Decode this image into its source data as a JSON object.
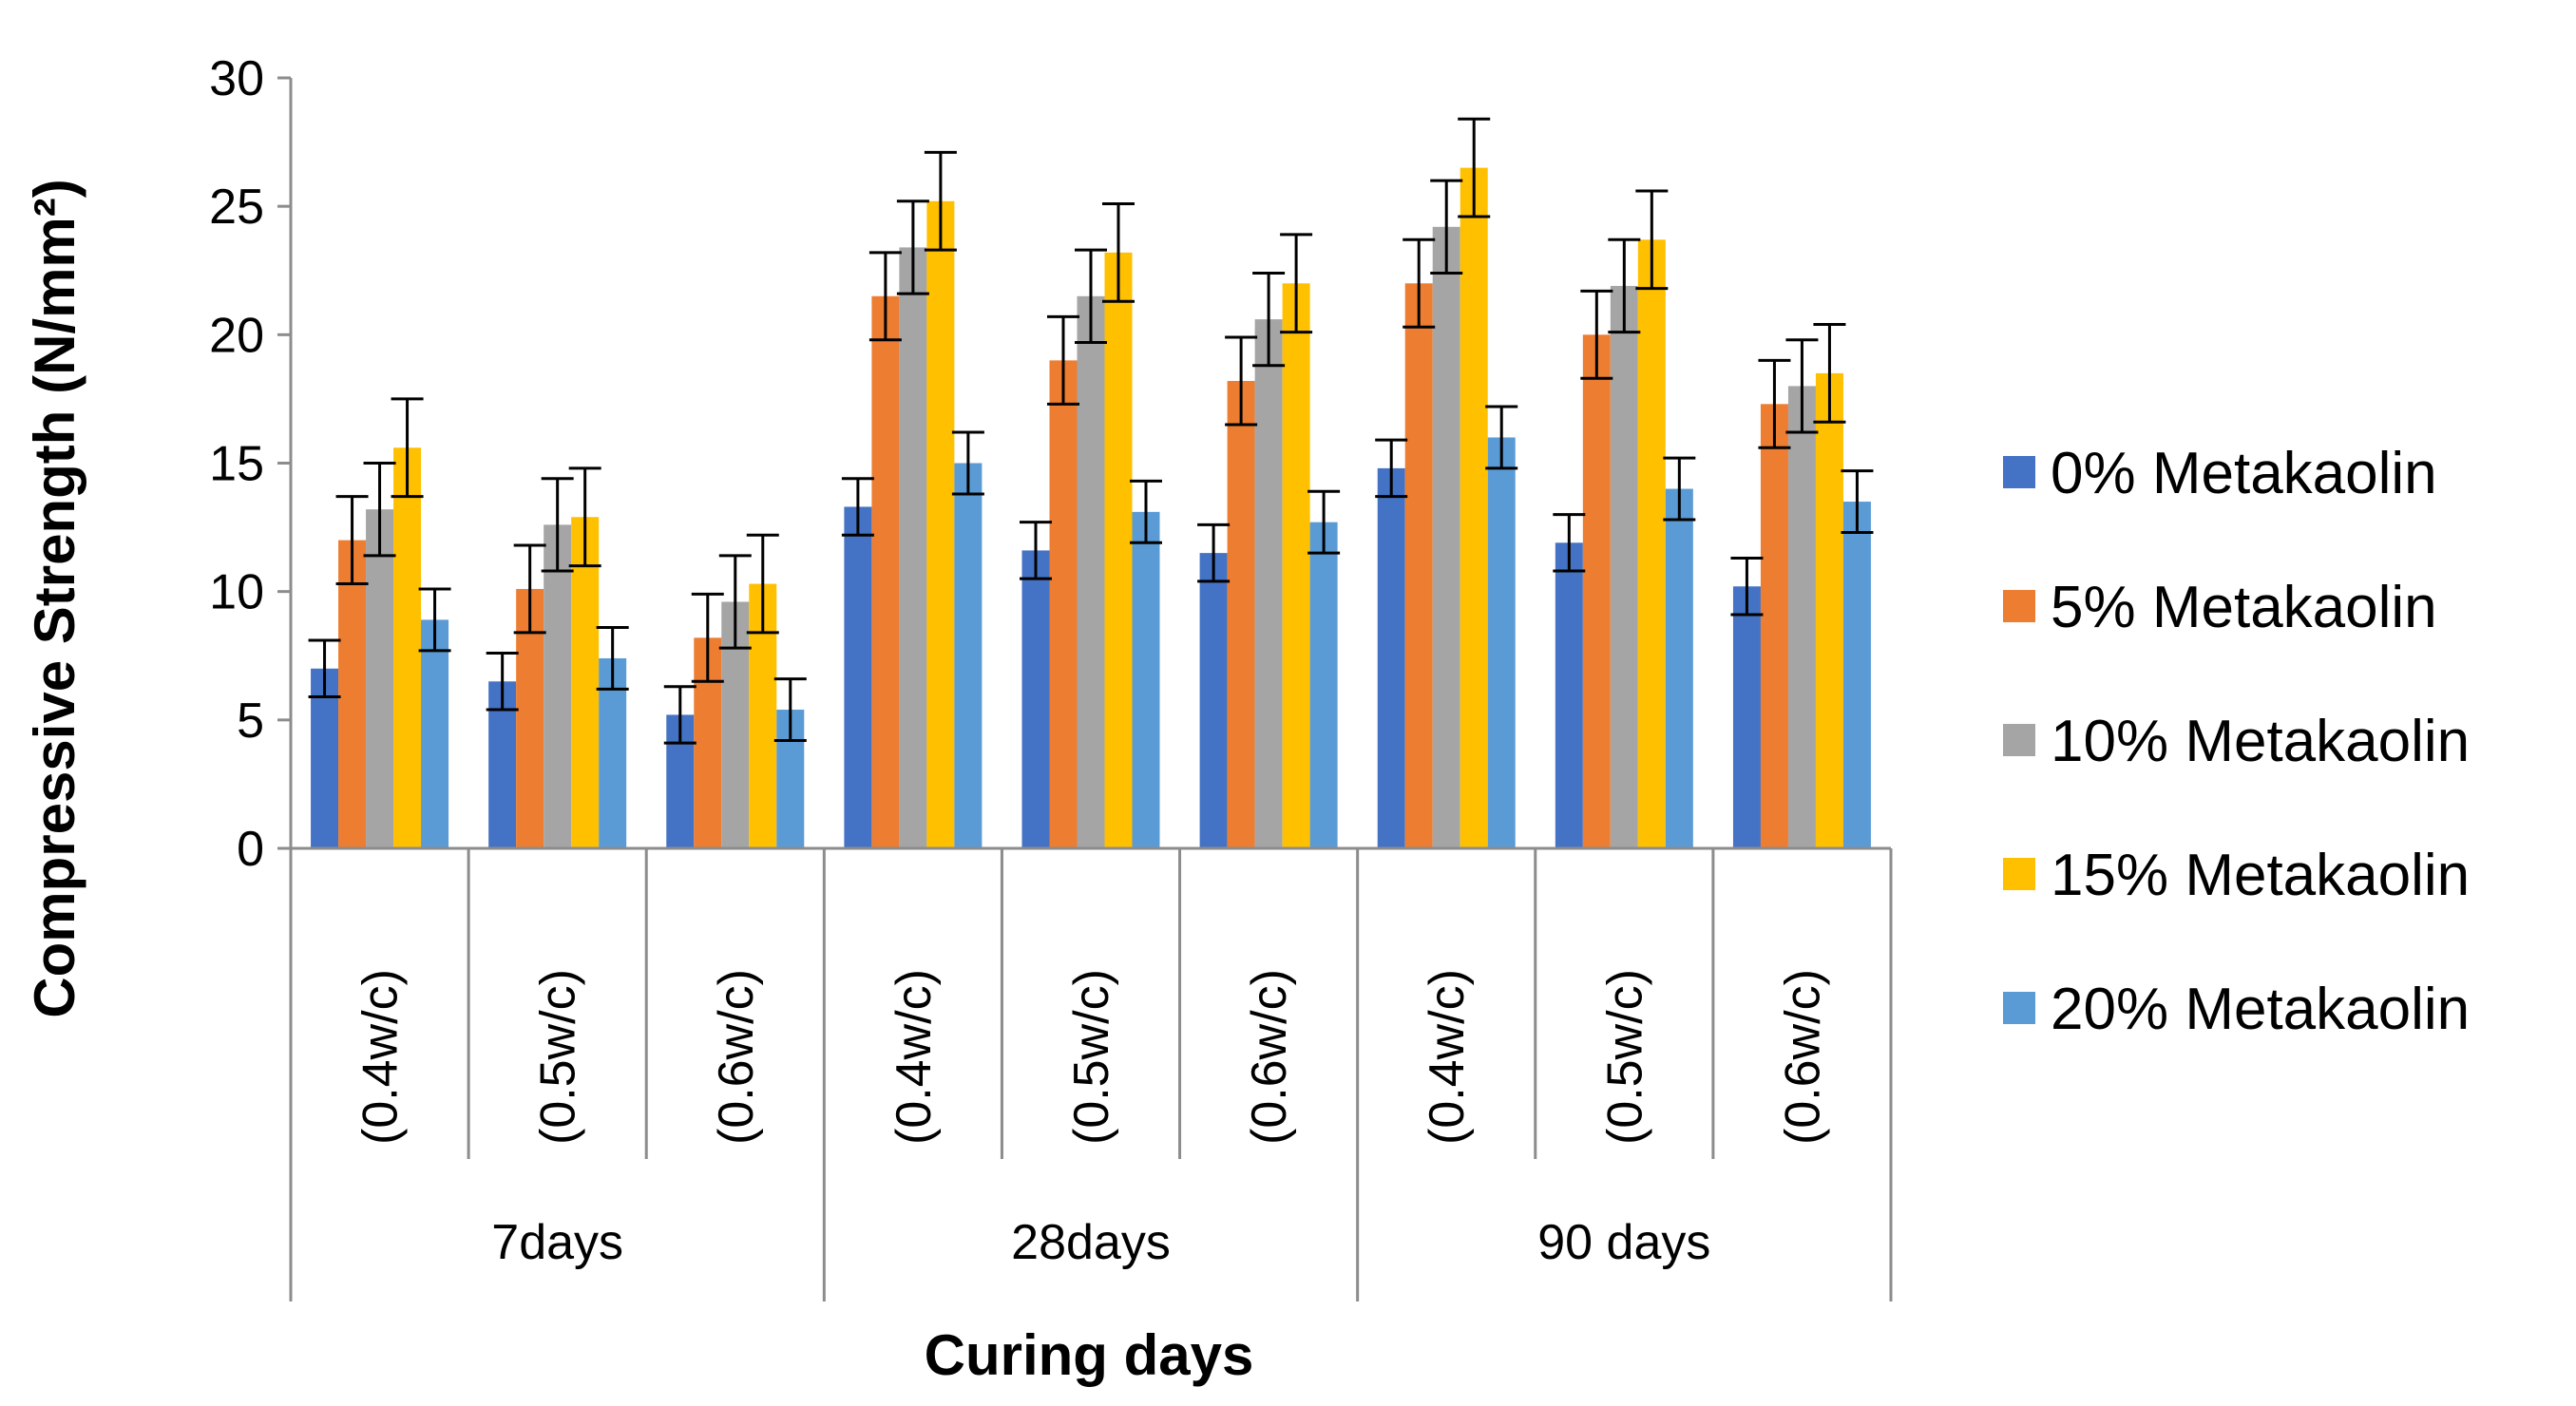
{
  "chart_data": {
    "type": "bar",
    "title": "",
    "xlabel": "Curing days",
    "ylabel": "Compressive Strength (N/mm²)",
    "ylim": [
      0,
      30
    ],
    "yticks": [
      "0",
      "5",
      "10",
      "15",
      "20",
      "25",
      "30"
    ],
    "groups": [
      "7days",
      "28days",
      "90 days"
    ],
    "categories": [
      "(0.4w/c)",
      "(0.5w/c)",
      "(0.6w/c)",
      "(0.4w/c)",
      "(0.5w/c)",
      "(0.6w/c)",
      "(0.4w/c)",
      "(0.5w/c)",
      "(0.6w/c)"
    ],
    "legend_position": "right",
    "series": [
      {
        "name": "0% Metakaolin",
        "color": "#4472C4",
        "values": [
          7.0,
          6.5,
          5.2,
          13.3,
          11.6,
          11.5,
          14.8,
          11.9,
          10.2
        ],
        "errors": [
          1.1,
          1.1,
          1.1,
          1.1,
          1.1,
          1.1,
          1.1,
          1.1,
          1.1
        ]
      },
      {
        "name": "5% Metakaolin",
        "color": "#ED7D31",
        "values": [
          12.0,
          10.1,
          8.2,
          21.5,
          19.0,
          18.2,
          22.0,
          20.0,
          17.3
        ],
        "errors": [
          1.7,
          1.7,
          1.7,
          1.7,
          1.7,
          1.7,
          1.7,
          1.7,
          1.7
        ]
      },
      {
        "name": "10% Metakaolin",
        "color": "#A5A5A5",
        "values": [
          13.2,
          12.6,
          9.6,
          23.4,
          21.5,
          20.6,
          24.2,
          21.9,
          18.0
        ],
        "errors": [
          1.8,
          1.8,
          1.8,
          1.8,
          1.8,
          1.8,
          1.8,
          1.8,
          1.8
        ]
      },
      {
        "name": "15% Metakaolin",
        "color": "#FFC000",
        "values": [
          15.6,
          12.9,
          10.3,
          25.2,
          23.2,
          22.0,
          26.5,
          23.7,
          18.5
        ],
        "errors": [
          1.9,
          1.9,
          1.9,
          1.9,
          1.9,
          1.9,
          1.9,
          1.9,
          1.9
        ]
      },
      {
        "name": "20% Metakaolin",
        "color": "#5B9BD5",
        "values": [
          8.9,
          7.4,
          5.4,
          15.0,
          13.1,
          12.7,
          16.0,
          14.0,
          13.5
        ],
        "errors": [
          1.2,
          1.2,
          1.2,
          1.2,
          1.2,
          1.2,
          1.2,
          1.2,
          1.2
        ]
      }
    ]
  }
}
